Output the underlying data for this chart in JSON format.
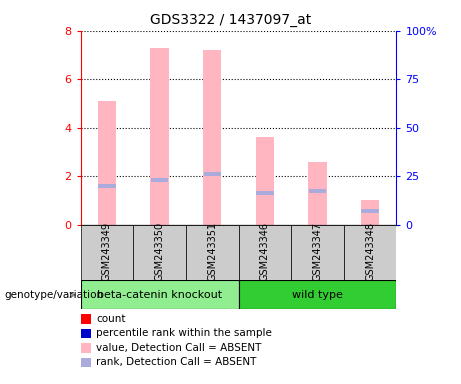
{
  "title": "GDS3322 / 1437097_at",
  "samples": [
    "GSM243349",
    "GSM243350",
    "GSM243351",
    "GSM243346",
    "GSM243347",
    "GSM243348"
  ],
  "pink_bar_heights": [
    5.1,
    7.3,
    7.2,
    3.6,
    2.6,
    1.0
  ],
  "blue_marker_heights": [
    1.6,
    1.85,
    2.1,
    1.3,
    1.4,
    0.55
  ],
  "ylim_left": [
    0,
    8
  ],
  "ylim_right": [
    0,
    100
  ],
  "yticks_left": [
    0,
    2,
    4,
    6,
    8
  ],
  "ytick_labels_right": [
    "0",
    "25",
    "50",
    "75",
    "100%"
  ],
  "group1_label": "beta-catenin knockout",
  "group2_label": "wild type",
  "group1_color": "#90EE90",
  "group2_color": "#32CD32",
  "sample_box_color": "#CCCCCC",
  "pink_color": "#FFB6C1",
  "blue_color": "#AAAADD",
  "left_axis_color": "#FF0000",
  "right_axis_color": "#0000FF",
  "legend_items": [
    {
      "color": "#FF0000",
      "label": "count"
    },
    {
      "color": "#0000CC",
      "label": "percentile rank within the sample"
    },
    {
      "color": "#FFB6C1",
      "label": "value, Detection Call = ABSENT"
    },
    {
      "color": "#AAAADD",
      "label": "rank, Detection Call = ABSENT"
    }
  ],
  "genotype_label": "genotype/variation",
  "bar_width": 0.35
}
